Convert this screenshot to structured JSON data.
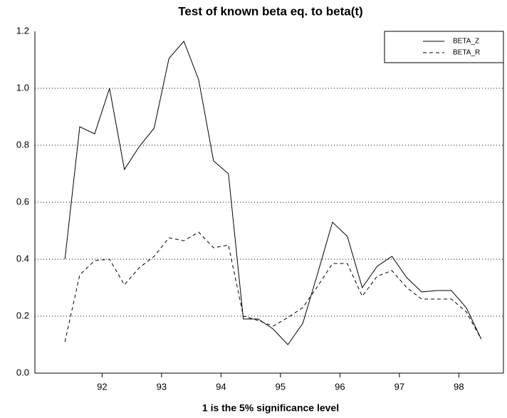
{
  "chart_data": {
    "type": "line",
    "title": "Test of known beta eq. to beta(t)",
    "x_label": "1 is the 5% significance level",
    "x": [
      91.875,
      92.125,
      92.375,
      92.625,
      92.875,
      93.125,
      93.375,
      93.625,
      93.875,
      94.125,
      94.375,
      94.625,
      94.875,
      95.125,
      95.375,
      95.625,
      95.875,
      96.125,
      96.375,
      96.625,
      96.875,
      97.125,
      97.375,
      97.625,
      97.875,
      98.125,
      98.375,
      98.625,
      98.875
    ],
    "series": [
      {
        "name": "BETA_Z",
        "color": "#000000",
        "dash": "solid",
        "values": [
          0.4,
          0.865,
          0.84,
          1.0,
          0.715,
          0.795,
          0.86,
          1.105,
          1.165,
          1.03,
          0.745,
          0.7,
          0.19,
          0.19,
          0.155,
          0.1,
          0.175,
          0.35,
          0.53,
          0.48,
          0.3,
          0.375,
          0.41,
          0.335,
          0.285,
          0.29,
          0.29,
          0.23,
          0.12
        ]
      },
      {
        "name": "BETA_R",
        "color": "#000000",
        "dash": "dashed",
        "values": [
          0.11,
          0.345,
          0.395,
          0.4,
          0.31,
          0.37,
          0.41,
          0.475,
          0.465,
          0.495,
          0.44,
          0.45,
          0.2,
          0.185,
          0.165,
          0.195,
          0.23,
          0.305,
          0.385,
          0.385,
          0.27,
          0.34,
          0.36,
          0.3,
          0.26,
          0.26,
          0.26,
          0.215,
          0.12
        ]
      }
    ],
    "xlim": [
      91.37,
      99.25
    ],
    "xticks": [
      {
        "value": 92.5,
        "label": "92"
      },
      {
        "value": 93.5,
        "label": "93"
      },
      {
        "value": 94.5,
        "label": "94"
      },
      {
        "value": 95.5,
        "label": "95"
      },
      {
        "value": 96.5,
        "label": "96"
      },
      {
        "value": 97.5,
        "label": "97"
      },
      {
        "value": 98.5,
        "label": "98"
      }
    ],
    "ylim": [
      0,
      1.2
    ],
    "yticks": [
      {
        "value": 0,
        "label": "0.0"
      },
      {
        "value": 0.2,
        "label": "0.2"
      },
      {
        "value": 0.4,
        "label": "0.4"
      },
      {
        "value": 0.6,
        "label": "0.6"
      },
      {
        "value": 0.8,
        "label": "0.8"
      },
      {
        "value": 1.0,
        "label": "1.0"
      },
      {
        "value": 1.2,
        "label": "1.2"
      }
    ],
    "grid": true,
    "legend_position": "upper right"
  }
}
